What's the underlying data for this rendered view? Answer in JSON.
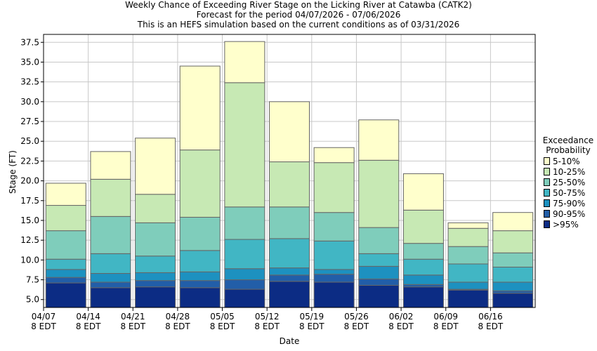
{
  "titles": {
    "line1": "Weekly Chance of Exceeding River Stage on the Licking River at Catawba (CATK2)",
    "line2": "Forecast for the period 04/07/2026 - 07/06/2026",
    "line3": "This is an HEFS simulation based on the current conditions as of 03/31/2026"
  },
  "chart_data": {
    "type": "bar",
    "stacked": true,
    "xlabel": "Date",
    "ylabel": "Stage (FT)",
    "ylim": [
      4,
      38.5
    ],
    "yticks": [
      5.0,
      7.5,
      10.0,
      12.5,
      15.0,
      17.5,
      20.0,
      22.5,
      25.0,
      27.5,
      30.0,
      32.5,
      35.0,
      37.5
    ],
    "ytick_labels": [
      "5.0",
      "7.5",
      "10.0",
      "12.5",
      "15.0",
      "17.5",
      "20.0",
      "22.5",
      "25.0",
      "27.5",
      "30.0",
      "32.5",
      "35.0",
      "37.5"
    ],
    "xticks": [
      "04/07",
      "04/14",
      "04/21",
      "04/28",
      "05/05",
      "05/12",
      "05/19",
      "05/26",
      "06/02",
      "06/09",
      "06/16"
    ],
    "xtick_sublabel": "8 EDT",
    "legend_title": [
      "Exceedance",
      "Probability"
    ],
    "legend": [
      "5-10%",
      "10-25%",
      "25-50%",
      "50-75%",
      "75-90%",
      "90-95%",
      ">95%"
    ],
    "legend_colors": [
      "#ffffcc",
      "#c7e9b4",
      "#7fcdbb",
      "#41b6c4",
      "#1d91c0",
      "#225ea8",
      "#0c2c84"
    ],
    "grid": true,
    "legend_position": "right",
    "weeks": [
      {
        "stages": [
          7.1,
          7.8,
          8.8,
          10.1,
          13.7,
          16.9,
          19.7
        ]
      },
      {
        "stages": [
          6.5,
          7.2,
          8.3,
          10.8,
          15.5,
          20.2,
          23.7
        ]
      },
      {
        "stages": [
          6.6,
          7.4,
          8.4,
          10.5,
          14.7,
          18.3,
          25.4
        ]
      },
      {
        "stages": [
          6.5,
          7.4,
          8.5,
          11.2,
          15.4,
          23.9,
          34.5
        ]
      },
      {
        "stages": [
          6.3,
          7.5,
          8.9,
          12.6,
          16.7,
          32.4,
          37.6
        ]
      },
      {
        "stages": [
          7.3,
          8.1,
          9.0,
          12.7,
          16.7,
          22.4,
          30.0
        ]
      },
      {
        "stages": [
          7.2,
          8.2,
          8.8,
          12.4,
          16.0,
          22.3,
          24.2
        ]
      },
      {
        "stages": [
          6.8,
          7.6,
          9.2,
          10.8,
          14.1,
          22.6,
          27.7
        ]
      },
      {
        "stages": [
          6.6,
          6.9,
          8.1,
          10.1,
          12.1,
          16.3,
          20.9
        ]
      },
      {
        "stages": [
          6.2,
          6.3,
          7.2,
          9.5,
          11.7,
          14.0,
          14.7
        ]
      },
      {
        "stages": [
          5.8,
          6.1,
          7.2,
          9.1,
          10.9,
          13.7,
          16.0
        ]
      }
    ]
  }
}
